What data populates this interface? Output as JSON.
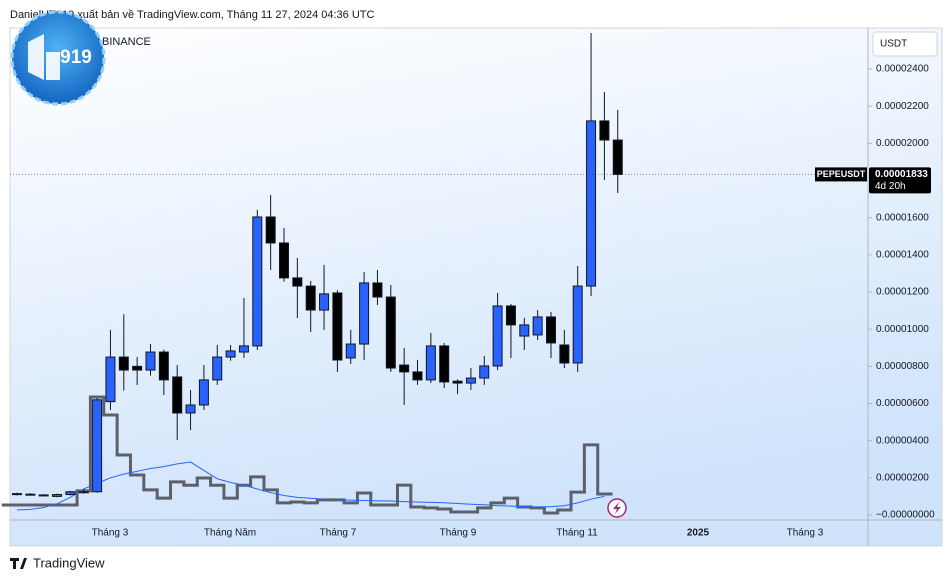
{
  "chart_data": {
    "type": "candlestick",
    "header": "DanielHT919 xuất bản về TradingView.com, Tháng 11 27, 2024 04:36 UTC",
    "symbol": "BINANCE",
    "logo_text": "919",
    "currency": "USDT",
    "last_symbol": "PEPEUSDT",
    "countdown": "4d 20h",
    "footer": "TradingView",
    "up_color": "#2962ff",
    "down_color": "#000000",
    "ylim": [
      -2.7e-07,
      2.621e-05
    ],
    "yticks": [
      {
        "value": 2.4e-05,
        "label": "0.00002400"
      },
      {
        "value": 2.2e-05,
        "label": "0.00002200"
      },
      {
        "value": 2e-05,
        "label": "0.00002000"
      },
      {
        "value": 1.6e-05,
        "label": "0.00001600"
      },
      {
        "value": 1.4e-05,
        "label": "0.00001400"
      },
      {
        "value": 1.2e-05,
        "label": "0.00001200"
      },
      {
        "value": 1e-05,
        "label": "0.00001000"
      },
      {
        "value": 8e-06,
        "label": "0.00000800"
      },
      {
        "value": 6e-06,
        "label": "0.00000600"
      },
      {
        "value": 4e-06,
        "label": "0.00000400"
      },
      {
        "value": 2e-06,
        "label": "0.00000200"
      },
      {
        "value": 0,
        "label": "−0.00000000"
      }
    ],
    "x_labels": [
      "Tháng 3",
      "Tháng Năm",
      "Tháng 7",
      "Tháng 9",
      "Tháng 11",
      "2025",
      "Tháng 3"
    ],
    "ohlc": {
      "open": [
        1.15e-06,
        1.12e-06,
        1.08e-06,
        1e-06,
        1.1e-06,
        1.25e-06,
        1.25e-06,
        6.1e-06,
        8.5e-06,
        8e-06,
        7.8e-06,
        8.77e-06,
        7.43e-06,
        5.49e-06,
        5.92e-06,
        7.27e-06,
        8.5e-06,
        8.77e-06,
        9.1e-06,
        1.604e-05,
        1.464e-05,
        1.276e-05,
        1.232e-05,
        1.103e-05,
        1.195e-05,
        8.45e-06,
        9.2e-06,
        1.249e-05,
        1.173e-05,
        8.07e-06,
        7.7e-06,
        7.27e-06,
        9.1e-06,
        7.2e-06,
        7.1e-06,
        7.37e-06,
        8.02e-06,
        1.125e-05,
        9.63e-06,
        9.69e-06,
        1.066e-05,
        9.15e-06,
        8.18e-06,
        1.232e-05,
        2.121e-05,
        2.018e-05
      ],
      "high": [
        1.2e-06,
        1.18e-06,
        1.12e-06,
        1.15e-06,
        1.3e-06,
        1.4e-06,
        6.3e-06,
        9.96e-06,
        1.08e-05,
        8.5e-06,
        9.2e-06,
        8.9e-06,
        8.07e-06,
        6.73e-06,
        8.07e-06,
        9.15e-06,
        9.15e-06,
        1.168e-05,
        1.642e-05,
        1.722e-05,
        1.545e-05,
        1.383e-05,
        1.26e-05,
        1.346e-05,
        1.21e-05,
        9.96e-06,
        1.308e-05,
        1.319e-05,
        1.238e-05,
        8.99e-06,
        8.34e-06,
        9.8e-06,
        9.26e-06,
        7.3e-06,
        7.91e-06,
        8.56e-06,
        1.195e-05,
        1.135e-05,
        1.061e-05,
        1.103e-05,
        1.093e-05,
        9.96e-06,
        1.34e-05,
        2.594e-05,
        2.277e-05,
        2.18e-05
      ],
      "low": [
        1.05e-06,
        1.05e-06,
        1e-06,
        9.5e-07,
        1.05e-06,
        1.15e-06,
        1.2e-06,
        5.65e-06,
        6.7e-06,
        7e-06,
        7.5e-06,
        6.46e-06,
        4.04e-06,
        4.57e-06,
        5.65e-06,
        7e-06,
        8.3e-06,
        8.45e-06,
        8.88e-06,
        1.319e-05,
        1.255e-05,
        1.06e-05,
        9.85e-06,
        9.96e-06,
        7.7e-06,
        8.13e-06,
        8.34e-06,
        1.13e-05,
        7.7e-06,
        5.92e-06,
        7e-06,
        7.1e-06,
        6.83e-06,
        6.5e-06,
        6.73e-06,
        7e-06,
        7.8e-06,
        8.45e-06,
        8.88e-06,
        9.42e-06,
        8.45e-06,
        7.91e-06,
        7.7e-06,
        1.178e-05,
        1.803e-05,
        1.733e-05
      ],
      "close": [
        1.1e-06,
        1.08e-06,
        1.05e-06,
        1.1e-06,
        1.25e-06,
        1.2e-06,
        6.2e-06,
        8.5e-06,
        7.8e-06,
        7.8e-06,
        8.77e-06,
        7.27e-06,
        5.49e-06,
        5.92e-06,
        7.27e-06,
        8.5e-06,
        8.83e-06,
        9.1e-06,
        1.604e-05,
        1.464e-05,
        1.276e-05,
        1.232e-05,
        1.103e-05,
        1.19e-05,
        8.34e-06,
        9.2e-06,
        1.249e-05,
        1.173e-05,
        7.91e-06,
        7.7e-06,
        7.27e-06,
        9.1e-06,
        7.16e-06,
        7.1e-06,
        7.37e-06,
        8.02e-06,
        1.125e-05,
        1.023e-05,
        1.023e-05,
        1.066e-05,
        9.26e-06,
        8.18e-06,
        1.232e-05,
        2.121e-05,
        2.018e-05,
        1.833e-05
      ]
    },
    "overlays": [
      {
        "type": "step",
        "color": "#5d606b",
        "values": [
          5.4e-07,
          5.4e-07,
          5.4e-07,
          5.4e-07,
          5.4e-07,
          1.3e-06,
          6.35e-06,
          5.38e-06,
          3.23e-06,
          2.15e-06,
          1.35e-06,
          9.1e-07,
          1.78e-06,
          1.6e-06,
          1.99e-06,
          1.6e-06,
          9.1e-07,
          1.6e-06,
          2.05e-06,
          1.35e-06,
          6.5e-07,
          7e-07,
          6.5e-07,
          8.1e-07,
          8.1e-07,
          6.5e-07,
          1.18e-06,
          5.4e-07,
          5.4e-07,
          1.61e-06,
          4.3e-07,
          3.8e-07,
          3.2e-07,
          1.6e-07,
          1.6e-07,
          3.8e-07,
          6.5e-07,
          9.1e-07,
          4.3e-07,
          3.8e-07,
          1.1e-07,
          2.7e-07,
          1.23e-06,
          3.77e-06,
          1.13e-06,
          null
        ]
      },
      {
        "type": "line",
        "color": "#2962ff",
        "values": [
          2.7e-07,
          3e-07,
          4e-07,
          6e-07,
          9.5e-07,
          1.4e-06,
          1.7e-06,
          2e-06,
          2.2e-06,
          2.35e-06,
          2.5e-06,
          2.6e-06,
          2.75e-06,
          2.85e-06,
          2.4e-06,
          1.95e-06,
          1.75e-06,
          1.6e-06,
          1.4e-06,
          1.2e-06,
          1.05e-06,
          9.5e-07,
          9e-07,
          8.5e-07,
          8.2e-07,
          8e-07,
          7.8e-07,
          7.6e-07,
          7.5e-07,
          7.2e-07,
          7e-07,
          6.8e-07,
          6.6e-07,
          6.2e-07,
          5.8e-07,
          5.5e-07,
          5e-07,
          4.8e-07,
          4.5e-07,
          4.3e-07,
          4.5e-07,
          5e-07,
          6.5e-07,
          8.5e-07,
          1e-06,
          null
        ]
      }
    ]
  }
}
